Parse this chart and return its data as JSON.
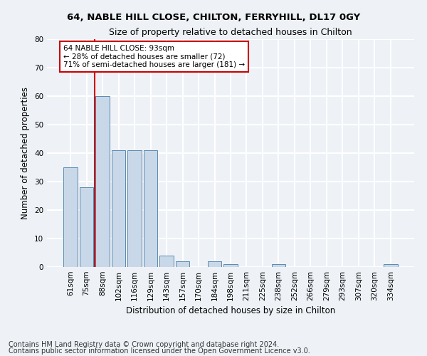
{
  "title1": "64, NABLE HILL CLOSE, CHILTON, FERRYHILL, DL17 0GY",
  "title2": "Size of property relative to detached houses in Chilton",
  "xlabel": "Distribution of detached houses by size in Chilton",
  "ylabel": "Number of detached properties",
  "categories": [
    "61sqm",
    "75sqm",
    "88sqm",
    "102sqm",
    "116sqm",
    "129sqm",
    "143sqm",
    "157sqm",
    "170sqm",
    "184sqm",
    "198sqm",
    "211sqm",
    "225sqm",
    "238sqm",
    "252sqm",
    "266sqm",
    "279sqm",
    "293sqm",
    "307sqm",
    "320sqm",
    "334sqm"
  ],
  "values": [
    35,
    28,
    60,
    41,
    41,
    41,
    4,
    2,
    0,
    2,
    1,
    0,
    0,
    1,
    0,
    0,
    0,
    0,
    0,
    0,
    1
  ],
  "bar_color": "#c8d8e8",
  "bar_edge_color": "#5a8ab0",
  "red_line_x": 1.5,
  "annotation_line1": "64 NABLE HILL CLOSE: 93sqm",
  "annotation_line2": "← 28% of detached houses are smaller (72)",
  "annotation_line3": "71% of semi-detached houses are larger (181) →",
  "annotation_box_color": "#ffffff",
  "annotation_box_edge": "#cc0000",
  "red_line_color": "#cc0000",
  "ylim": [
    0,
    80
  ],
  "yticks": [
    0,
    10,
    20,
    30,
    40,
    50,
    60,
    70,
    80
  ],
  "footnote1": "Contains HM Land Registry data © Crown copyright and database right 2024.",
  "footnote2": "Contains public sector information licensed under the Open Government Licence v3.0.",
  "background_color": "#eef2f7",
  "grid_color": "#ffffff",
  "title_fontsize": 9.5,
  "subtitle_fontsize": 9,
  "axis_label_fontsize": 8.5,
  "tick_fontsize": 7.5,
  "annotation_fontsize": 7.5,
  "footnote_fontsize": 7
}
